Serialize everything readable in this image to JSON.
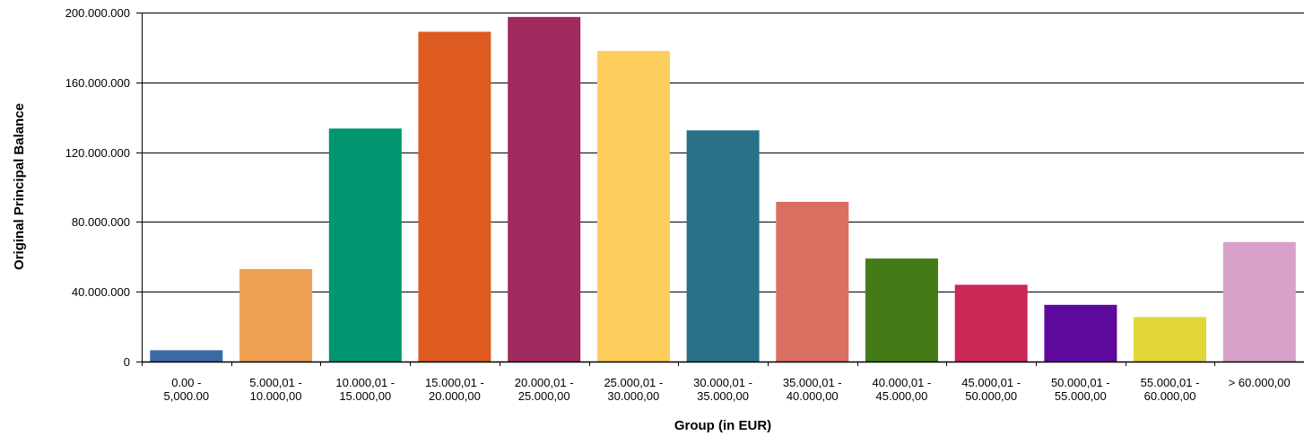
{
  "chart_data": {
    "type": "bar",
    "title": "",
    "xlabel": "Group (in EUR)",
    "ylabel": "Original Principal Balance",
    "ylim": [
      0,
      200000000
    ],
    "yticks": [
      {
        "value": 0,
        "label": "0"
      },
      {
        "value": 40000000,
        "label": "40.000.000"
      },
      {
        "value": 80000000,
        "label": "80.000.000"
      },
      {
        "value": 120000000,
        "label": "120.000.000"
      },
      {
        "value": 160000000,
        "label": "160.000.000"
      },
      {
        "value": 200000000,
        "label": "200.000.000"
      }
    ],
    "grid": true,
    "legend": "none",
    "categories": [
      [
        "0.00 -",
        "5,000.00"
      ],
      [
        "5.000,01 -",
        "10.000,00"
      ],
      [
        "10.000,01 -",
        "15.000,00"
      ],
      [
        "15.000,01 -",
        "20.000,00"
      ],
      [
        "20.000,01 -",
        "25.000,00"
      ],
      [
        "25.000,01 -",
        "30.000,00"
      ],
      [
        "30.000,01 -",
        "35.000,00"
      ],
      [
        "35.000,01 -",
        "40.000,00"
      ],
      [
        "40.000,01 -",
        "45.000,00"
      ],
      [
        "45.000,01 -",
        "50.000,00"
      ],
      [
        "50.000,01 -",
        "55.000,00"
      ],
      [
        "55.000,01 -",
        "60.000,00"
      ],
      [
        "> 60.000,00"
      ]
    ],
    "values": [
      6500000,
      53000000,
      133500000,
      189000000,
      197500000,
      178000000,
      132500000,
      91500000,
      59000000,
      44000000,
      32500000,
      25500000,
      68500000
    ],
    "colors": [
      "#3c6aa4",
      "#eea152",
      "#009670",
      "#dd5a20",
      "#a12a5e",
      "#fdce5d",
      "#297289",
      "#da6f61",
      "#437b16",
      "#cb2757",
      "#5e099e",
      "#e2d739",
      "#d8a2c8"
    ]
  }
}
